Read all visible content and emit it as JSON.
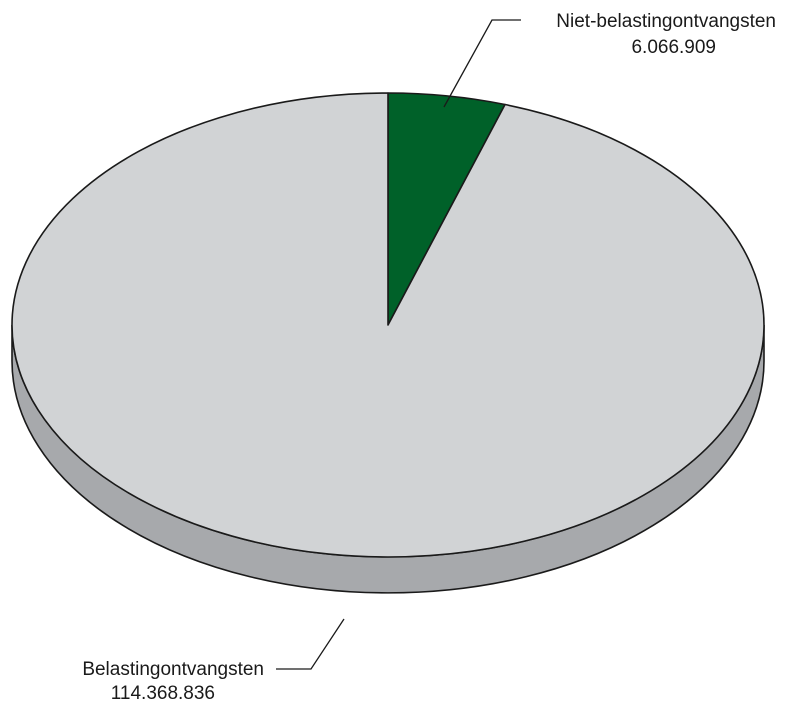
{
  "chart_data": {
    "type": "pie",
    "style": "3d",
    "start_angle": "12 o'clock",
    "direction": "clockwise",
    "slices": [
      {
        "label": "Niet-belastingontvangsten",
        "value": 6066909,
        "value_label": "6.066.909",
        "color": "#006129"
      },
      {
        "label": "Belastingontvangsten",
        "value": 114368836,
        "value_label": "114.368.836",
        "color": "#d1d3d5"
      }
    ],
    "side_color": "#a7a9ac",
    "outline_color": "#1a1a1a"
  }
}
